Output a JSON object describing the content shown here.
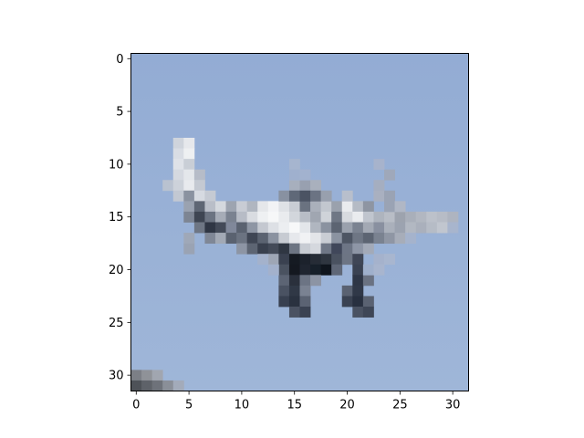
{
  "image": {
    "description_icon": "pixelated-airplane-image",
    "rows": 32,
    "cols": 32,
    "sky_color": "#93acd4",
    "sky_color_bottom": "#9fb6d8"
  },
  "axes": {
    "x_ticks": [
      0,
      5,
      10,
      15,
      20,
      25,
      30
    ],
    "y_ticks": [
      0,
      5,
      10,
      15,
      20,
      25,
      30
    ],
    "x_range": [
      -0.5,
      31.5
    ],
    "y_range": [
      -0.5,
      31.5
    ],
    "y_inverted": true
  }
}
